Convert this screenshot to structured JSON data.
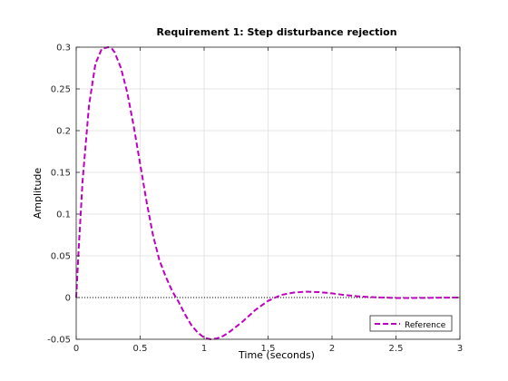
{
  "chart_data": {
    "type": "line",
    "title": "Requirement 1: Step disturbance rejection",
    "xlabel": "Time (seconds)",
    "ylabel": "Amplitude",
    "xlim": [
      0,
      3
    ],
    "ylim": [
      -0.05,
      0.3
    ],
    "xticks": [
      0,
      0.5,
      1,
      1.5,
      2,
      2.5,
      3
    ],
    "xtick_labels": [
      "0",
      "0.5",
      "1",
      "1.5",
      "2",
      "2.5",
      "3"
    ],
    "yticks": [
      -0.05,
      0,
      0.05,
      0.1,
      0.15,
      0.2,
      0.25,
      0.3
    ],
    "ytick_labels": [
      "-0.05",
      "0",
      "0.05",
      "0.1",
      "0.15",
      "0.2",
      "0.25",
      "0.3"
    ],
    "grid": true,
    "legend_position": "bottom-right",
    "reference_line": {
      "y": 0,
      "style": "dotted",
      "color": "#000000"
    },
    "series": [
      {
        "name": "Reference",
        "color": "#bf00bf",
        "style": "dashed",
        "x": [
          0,
          0.02,
          0.05,
          0.1,
          0.15,
          0.2,
          0.25,
          0.28,
          0.3,
          0.35,
          0.4,
          0.45,
          0.5,
          0.55,
          0.6,
          0.65,
          0.7,
          0.75,
          0.78,
          0.8,
          0.85,
          0.9,
          0.95,
          1.0,
          1.05,
          1.1,
          1.15,
          1.2,
          1.3,
          1.4,
          1.5,
          1.6,
          1.7,
          1.8,
          1.9,
          2.0,
          2.1,
          2.2,
          2.3,
          2.4,
          2.5,
          2.6,
          2.7,
          2.8,
          2.9,
          3.0
        ],
        "y": [
          0,
          0.06,
          0.14,
          0.23,
          0.28,
          0.298,
          0.3,
          0.298,
          0.294,
          0.275,
          0.245,
          0.205,
          0.16,
          0.115,
          0.075,
          0.045,
          0.025,
          0.008,
          0.0,
          -0.005,
          -0.02,
          -0.033,
          -0.042,
          -0.048,
          -0.05,
          -0.049,
          -0.046,
          -0.041,
          -0.029,
          -0.015,
          -0.004,
          0.003,
          0.006,
          0.007,
          0.0065,
          0.005,
          0.003,
          0.0015,
          0.0005,
          0.0,
          -0.0005,
          -0.0005,
          -0.0004,
          -0.0003,
          -0.0001,
          0.0
        ]
      }
    ]
  }
}
